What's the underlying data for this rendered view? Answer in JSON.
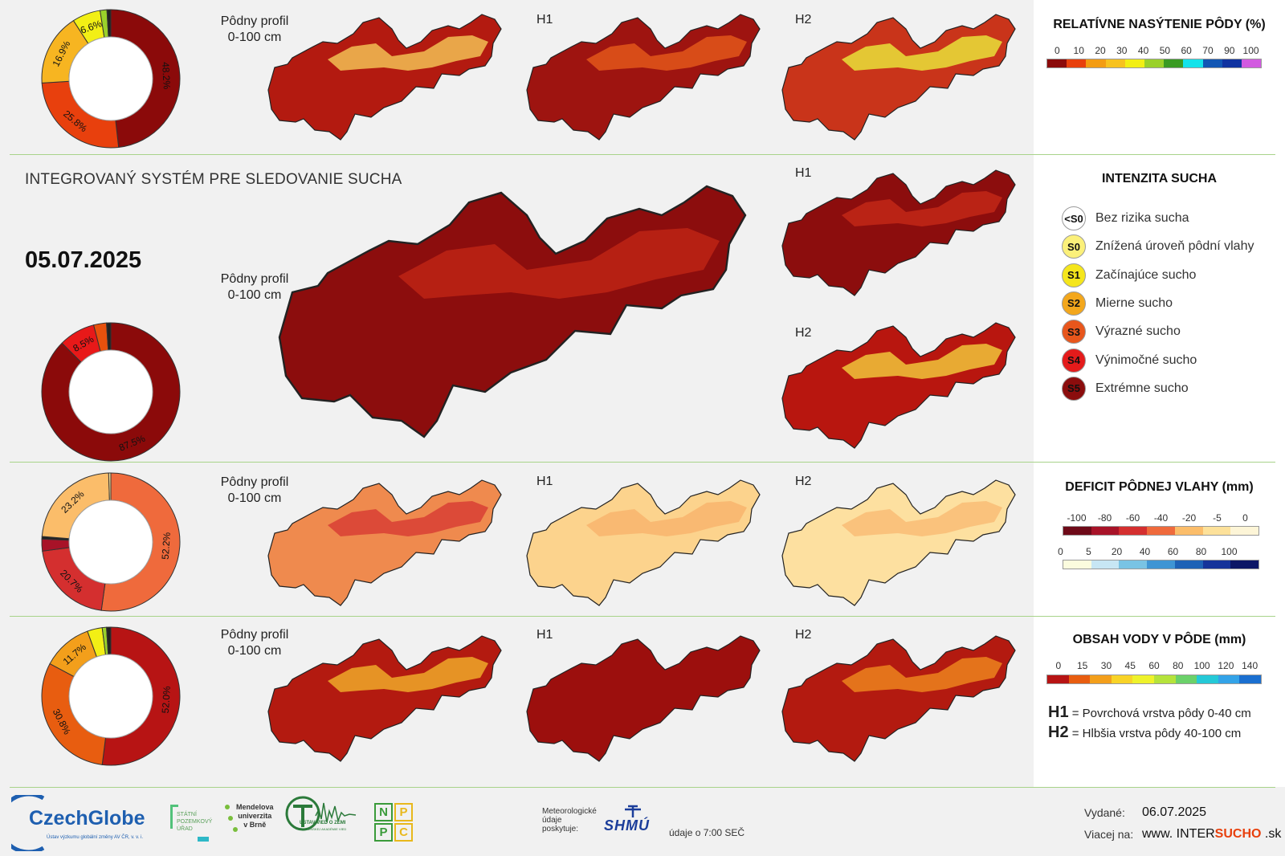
{
  "colors": {
    "sat": [
      "#8b0a0a",
      "#e8400d",
      "#f39c12",
      "#f7c21f",
      "#f2ef15",
      "#9ad12a",
      "#3a9b23",
      "#14e3ea",
      "#1257b4",
      "#1033a0",
      "#d25ae0"
    ],
    "def_neg": [
      "#6e0a18",
      "#a81328",
      "#d42f2f",
      "#ef6a3c",
      "#fbbd6a",
      "#fde19a",
      "#fdf5d7"
    ],
    "def_pos": [
      "#fbfcde",
      "#c7e6f4",
      "#79c3e4",
      "#3f95d4",
      "#1e62b6",
      "#15339a",
      "#0c1666"
    ],
    "water": [
      "#b71414",
      "#e85d10",
      "#f39f1b",
      "#f8d327",
      "#eef22b",
      "#b5e33b",
      "#6bd16a",
      "#25c9d7",
      "#33a3e8",
      "#1a6fd0"
    ],
    "map_dark": "#8c0d0d",
    "map_mid": "#d9321a",
    "map_light": "#f6c957",
    "accent_green": "#a8d38a"
  },
  "section1": {
    "label_profile": "Pôdny profil\n0-100 cm",
    "label_h1": "H1",
    "label_h2": "H2",
    "donut": {
      "segments": [
        {
          "value": 48.2,
          "color": "#8b0a0a",
          "label": "48.2%"
        },
        {
          "value": 25.8,
          "color": "#e8400d",
          "label": "25.8%"
        },
        {
          "value": 16.9,
          "color": "#f7b521",
          "label": "16.9%"
        },
        {
          "value": 6.6,
          "color": "#f2ef15",
          "label": "6.6%"
        },
        {
          "value": 1.6,
          "color": "#9ad12a",
          "label": ""
        },
        {
          "value": 0.9,
          "color": "#222222",
          "label": ""
        }
      ]
    },
    "legend_title": "RELATÍVNE NASÝTENIE PÔDY (%)",
    "legend_ticks": [
      "0",
      "10",
      "20",
      "30",
      "40",
      "50",
      "60",
      "70",
      "90",
      "100"
    ]
  },
  "section2": {
    "system_title": "INTEGROVANÝ SYSTÉM PRE SLEDOVANIE SUCHA",
    "date": "05.07.2025",
    "label_profile": "Pôdny profil\n0-100 cm",
    "label_h1": "H1",
    "label_h2": "H2",
    "donut": {
      "segments": [
        {
          "value": 87.5,
          "color": "#8b0a0a",
          "label": "87.5%"
        },
        {
          "value": 8.5,
          "color": "#e81919",
          "label": "8.5%"
        },
        {
          "value": 3.0,
          "color": "#e8510d",
          "label": ""
        },
        {
          "value": 1.0,
          "color": "#222222",
          "label": ""
        }
      ]
    },
    "legend_title": "INTENZITA SUCHA",
    "levels": [
      {
        "code": "<S0",
        "label": "Bez rizika sucha",
        "color": "#ffffff"
      },
      {
        "code": "S0",
        "label": "Znížená úroveň pôdní vlahy",
        "color": "#fbf07a"
      },
      {
        "code": "S1",
        "label": "Začínajúce sucho",
        "color": "#f5e61c"
      },
      {
        "code": "S2",
        "label": "Mierne sucho",
        "color": "#f3a71c"
      },
      {
        "code": "S3",
        "label": "Výrazné sucho",
        "color": "#e8561c"
      },
      {
        "code": "S4",
        "label": "Výnimočné sucho",
        "color": "#e41b1b"
      },
      {
        "code": "S5",
        "label": "Extrémne sucho",
        "color": "#8b0d0d"
      }
    ]
  },
  "section3": {
    "label_profile": "Pôdny profil\n0-100 cm",
    "label_h1": "H1",
    "label_h2": "H2",
    "donut": {
      "segments": [
        {
          "value": 52.2,
          "color": "#ef6a3c",
          "label": "52.2%"
        },
        {
          "value": 20.7,
          "color": "#d42f2f",
          "label": "20.7%"
        },
        {
          "value": 2.8,
          "color": "#a81328",
          "label": ""
        },
        {
          "value": 0.6,
          "color": "#222222",
          "label": ""
        },
        {
          "value": 23.2,
          "color": "#fbbd6a",
          "label": "23.2%"
        },
        {
          "value": 0.5,
          "color": "#fde19a",
          "label": ""
        }
      ]
    },
    "legend_title": "DEFICIT PÔDNEJ VLAHY (mm)",
    "legend_ticks_neg": [
      "-100",
      "-80",
      "-60",
      "-40",
      "-20",
      "-5",
      "0"
    ],
    "legend_ticks_pos": [
      "0",
      "5",
      "20",
      "40",
      "60",
      "80",
      "100"
    ]
  },
  "section4": {
    "label_profile": "Pôdny profil\n0-100 cm",
    "label_h1": "H1",
    "label_h2": "H2",
    "donut": {
      "segments": [
        {
          "value": 52.0,
          "color": "#b71414",
          "label": "52.0%"
        },
        {
          "value": 30.8,
          "color": "#e85d10",
          "label": "30.8%"
        },
        {
          "value": 11.7,
          "color": "#f39f1b",
          "label": "11.7%"
        },
        {
          "value": 3.5,
          "color": "#f2ef15",
          "label": ""
        },
        {
          "value": 1.0,
          "color": "#9ad12a",
          "label": ""
        },
        {
          "value": 1.0,
          "color": "#222222",
          "label": ""
        }
      ]
    },
    "legend_title": "OBSAH VODY V PÔDE (mm)",
    "legend_ticks": [
      "0",
      "15",
      "30",
      "45",
      "60",
      "80",
      "100",
      "120",
      "140"
    ],
    "h1_key": "H1",
    "h1_text": "= Povrchová vrstva pôdy 0-40 cm",
    "h2_key": "H2",
    "h2_text": "= Hlbšia vrstva pôdy 40-100 cm"
  },
  "footer": {
    "czechglobe": "CzechGlobe",
    "czechglobe_sub": "Ústav výzkumu globální změny AV ČR, v. v. i.",
    "spu": "STÁTNÍ\nPOZEMKOVÝ\nÚŘAD",
    "mendelu": "Mendelova\nuniverzita\nv Brně",
    "uvz": "ÚSTAV VIED O ZEMI",
    "uvz_sub": "SLOVENSKEJ AKADÉMIE VIED",
    "nppc": [
      "N",
      "P",
      "P",
      "C"
    ],
    "met_text": "Meteorologické\núdaje\nposkytuje:",
    "shmu": "SHMÚ",
    "data_time": "údaje o 7:00 SEČ",
    "issued_label": "Vydané:",
    "issued_date": "06.07.2025",
    "more_label": "Viacej na:",
    "web_a": "www. INTER",
    "web_b": "SUCHO",
    "web_c": " .sk"
  }
}
